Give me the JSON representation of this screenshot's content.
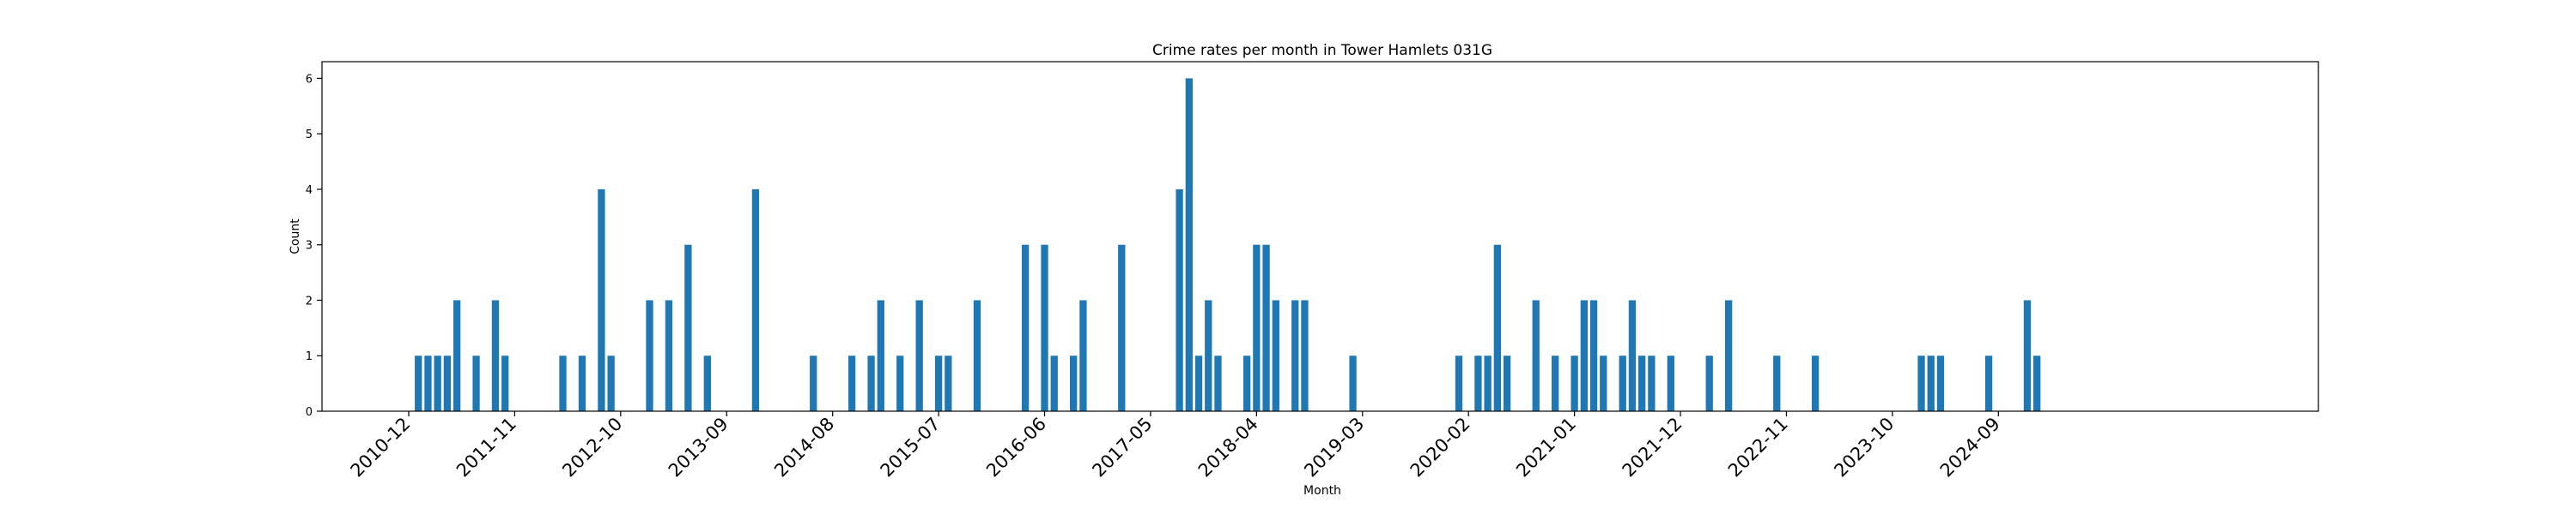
{
  "chart_data": {
    "type": "bar",
    "title": "Crime rates per month in Tower Hamlets 031G",
    "xlabel": "Month",
    "ylabel": "Count",
    "ylim": [
      0,
      6.3
    ],
    "yticks": [
      0,
      1,
      2,
      3,
      4,
      5,
      6
    ],
    "xticks": [
      "2010-12",
      "2011-11",
      "2012-10",
      "2013-09",
      "2014-08",
      "2015-07",
      "2016-06",
      "2017-05",
      "2018-04",
      "2019-03",
      "2020-02",
      "2021-01",
      "2021-12",
      "2022-11",
      "2023-10",
      "2024-09"
    ],
    "grid": false,
    "color": "#1f77b4",
    "x": [
      "2011-01",
      "2011-02",
      "2011-03",
      "2011-04",
      "2011-05",
      "2011-07",
      "2011-09",
      "2011-10",
      "2012-04",
      "2012-06",
      "2012-08",
      "2012-09",
      "2013-01",
      "2013-03",
      "2013-05",
      "2013-07",
      "2013-12",
      "2014-06",
      "2014-10",
      "2014-12",
      "2015-01",
      "2015-03",
      "2015-05",
      "2015-07",
      "2015-08",
      "2015-11",
      "2016-04",
      "2016-06",
      "2016-07",
      "2016-09",
      "2016-10",
      "2017-02",
      "2017-08",
      "2017-09",
      "2017-10",
      "2017-11",
      "2017-12",
      "2018-03",
      "2018-04",
      "2018-05",
      "2018-06",
      "2018-08",
      "2018-09",
      "2019-02",
      "2020-01",
      "2020-03",
      "2020-04",
      "2020-05",
      "2020-06",
      "2020-09",
      "2020-11",
      "2021-01",
      "2021-02",
      "2021-03",
      "2021-04",
      "2021-06",
      "2021-07",
      "2021-08",
      "2021-09",
      "2021-11",
      "2022-03",
      "2022-05",
      "2022-10",
      "2023-02",
      "2024-01",
      "2024-02",
      "2024-03",
      "2024-08",
      "2024-12",
      "2025-01"
    ],
    "values": [
      1,
      1,
      1,
      1,
      2,
      1,
      2,
      1,
      1,
      1,
      4,
      1,
      2,
      2,
      3,
      1,
      4,
      1,
      1,
      1,
      2,
      1,
      2,
      1,
      1,
      2,
      3,
      3,
      1,
      1,
      2,
      3,
      4,
      6,
      1,
      2,
      1,
      1,
      3,
      3,
      2,
      2,
      2,
      1,
      1,
      1,
      1,
      3,
      1,
      2,
      1,
      1,
      2,
      2,
      1,
      1,
      2,
      1,
      1,
      1,
      1,
      2,
      1,
      1,
      1,
      1,
      1,
      1,
      2,
      1
    ]
  }
}
